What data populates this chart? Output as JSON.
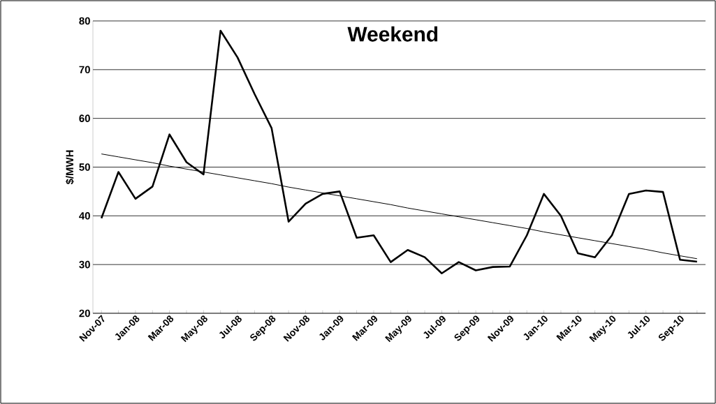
{
  "chart_data": {
    "type": "line",
    "title": "Weekend",
    "ylabel": "$/MWH",
    "categories": [
      "Nov-07",
      null,
      "Jan-08",
      null,
      "Mar-08",
      null,
      "May-08",
      null,
      "Jul-08",
      null,
      "Sep-08",
      null,
      "Nov-08",
      null,
      "Jan-09",
      null,
      "Mar-09",
      null,
      "May-09",
      null,
      "Jul-09",
      null,
      "Sep-09",
      null,
      "Nov-09",
      null,
      "Jan-10",
      null,
      "Mar-10",
      null,
      "May-10",
      null,
      "Jul-10",
      null,
      "Sep-10",
      null
    ],
    "series": [
      {
        "color": "#000000",
        "values": [
          39.5,
          49,
          43.5,
          46,
          56.7,
          51,
          48.5,
          78,
          72.5,
          65,
          58,
          38.8,
          42.5,
          44.5,
          45,
          35.5,
          36,
          30.5,
          33,
          31.5,
          28.2,
          30.5,
          28.8,
          29.5,
          29.6,
          36,
          44.5,
          40,
          32.3,
          31.5,
          36,
          44.5,
          45.2,
          44.9,
          31,
          30.6
        ]
      },
      {
        "color": "#000000",
        "values": [
          52.7,
          52.1,
          51.5,
          50.9,
          50.2,
          49.6,
          49.0,
          48.4,
          47.8,
          47.2,
          46.6,
          45.9,
          45.3,
          44.7,
          44.1,
          43.5,
          42.9,
          42.3,
          41.6,
          41.0,
          40.4,
          39.8,
          39.2,
          38.6,
          38.0,
          37.4,
          36.7,
          36.1,
          35.5,
          34.9,
          34.3,
          33.7,
          33.1,
          32.4,
          31.8,
          31.2
        ]
      }
    ],
    "ylim": [
      20,
      80
    ],
    "yticks": [
      20,
      30,
      40,
      50,
      60,
      70,
      80
    ],
    "grid": "y",
    "marker": "none",
    "line_style": "solid"
  }
}
